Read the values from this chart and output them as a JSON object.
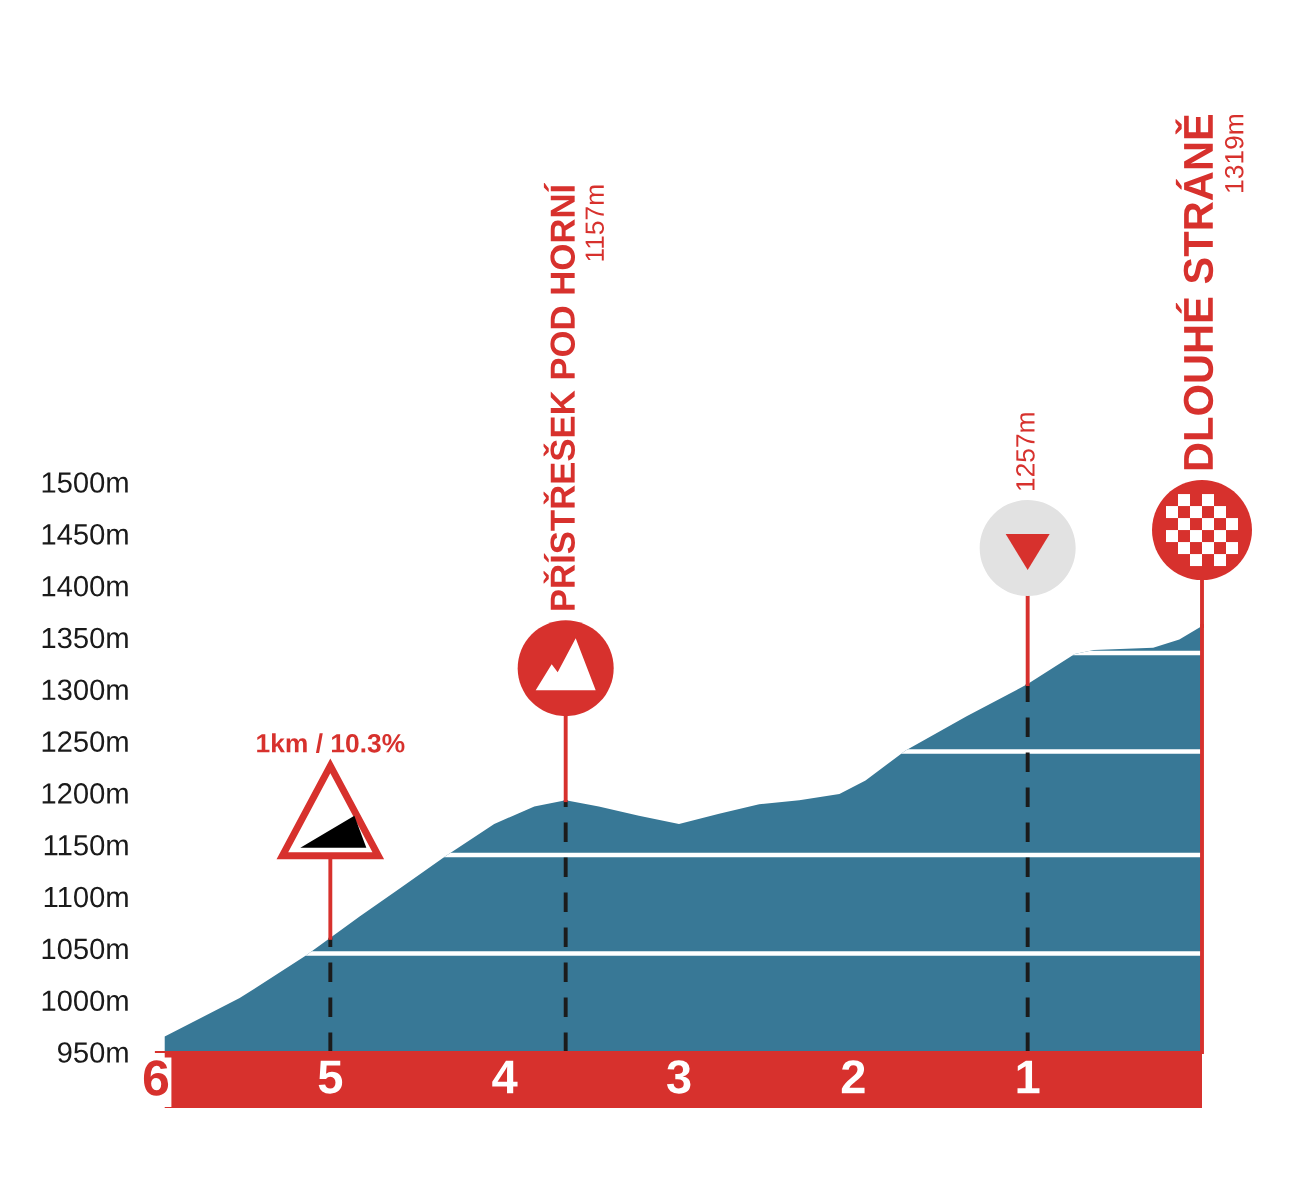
{
  "chart_data": {
    "type": "area",
    "x": [
      5.95,
      5.52,
      5.14,
      4.83,
      4.6,
      4.34,
      4.06,
      3.83,
      3.65,
      3.46,
      3.23,
      3.0,
      2.77,
      2.54,
      2.31,
      2.08,
      1.93,
      1.7,
      1.35,
      1.0,
      0.73,
      0.62,
      0.28,
      0.13,
      0.0
    ],
    "series": [
      {
        "color": "#387896",
        "values": [
          965,
          1002,
          1043,
          1081,
          1108,
          1139,
          1170,
          1187,
          1193,
          1187,
          1178,
          1170,
          1180,
          1189,
          1193,
          1199,
          1212,
          1241,
          1274,
          1305,
          1334,
          1338,
          1340,
          1348,
          1361
        ]
      }
    ],
    "xlim": [
      6,
      0
    ],
    "xticks": [
      6,
      5,
      4,
      3,
      2,
      1
    ],
    "ylim": [
      950,
      1500
    ],
    "yticks": [
      {
        "value": 950,
        "label": "950m"
      },
      {
        "value": 1000,
        "label": "1000m"
      },
      {
        "value": 1050,
        "label": "1050m"
      },
      {
        "value": 1100,
        "label": "1100m"
      },
      {
        "value": 1150,
        "label": "1150m"
      },
      {
        "value": 1200,
        "label": "1200m"
      },
      {
        "value": 1250,
        "label": "1250m"
      },
      {
        "value": 1300,
        "label": "1300m"
      },
      {
        "value": 1350,
        "label": "1350m"
      },
      {
        "value": 1400,
        "label": "1400m"
      },
      {
        "value": 1450,
        "label": "1450m"
      },
      {
        "value": 1500,
        "label": "1500m"
      }
    ],
    "ref_lines": [
      {
        "axis": "y",
        "value": 1045,
        "color": "#ffffff"
      },
      {
        "axis": "y",
        "value": 1140,
        "color": "#ffffff"
      },
      {
        "axis": "y",
        "value": 1240,
        "color": "#ffffff"
      },
      {
        "axis": "y",
        "value": 1335,
        "color": "#ffffff"
      },
      {
        "axis": "x",
        "value": 5,
        "color": "#1b1b1b",
        "line_style": "dashed"
      },
      {
        "axis": "x",
        "value": 3.65,
        "color": "#1b1b1b",
        "line_style": "dashed"
      },
      {
        "axis": "x",
        "value": 1,
        "color": "#1b1b1b",
        "line_style": "dashed"
      },
      {
        "axis": "x",
        "value": 0,
        "color": "#d7312d",
        "line_style": "solid"
      }
    ],
    "annotations": [
      "1km / 10.3%",
      "PŘÍSTŘEŠEK POD HORNÍ",
      "1157m",
      "1257m",
      "DLOUHÉ STRÁNĚ",
      "1319m"
    ]
  }
}
